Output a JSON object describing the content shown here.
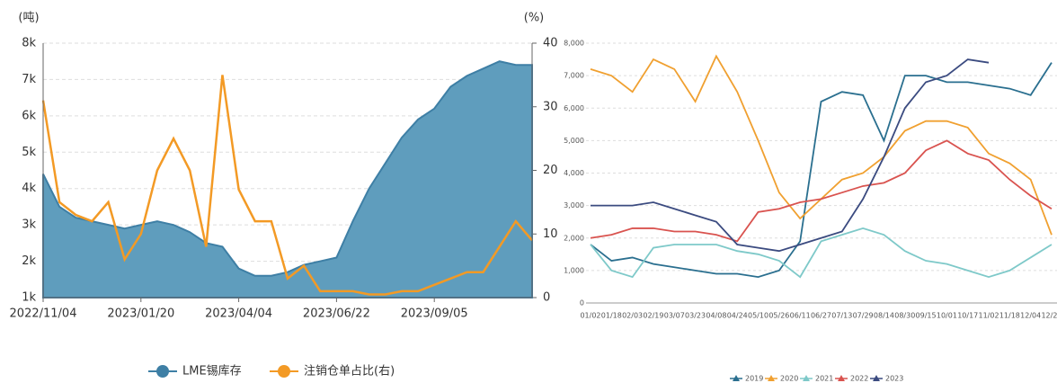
{
  "chart_data": [
    {
      "type": "combo",
      "y_label": "(吨)",
      "y2_label": "(%)",
      "categories": [
        "2022/11/04",
        null,
        null,
        null,
        null,
        null,
        "2023/01/20",
        null,
        null,
        null,
        null,
        null,
        "2023/04/04",
        null,
        null,
        null,
        null,
        null,
        "2023/06/22",
        null,
        null,
        null,
        null,
        null,
        "2023/09/05",
        null,
        null,
        null,
        null,
        null,
        null
      ],
      "ylim": [
        1000,
        8000
      ],
      "yticks": [
        {
          "value": 1000,
          "label": "1k"
        },
        {
          "value": 2000,
          "label": "2k"
        },
        {
          "value": 3000,
          "label": "3k"
        },
        {
          "value": 4000,
          "label": "4k"
        },
        {
          "value": 5000,
          "label": "5k"
        },
        {
          "value": 6000,
          "label": "6k"
        },
        {
          "value": 7000,
          "label": "7k"
        },
        {
          "value": 8000,
          "label": "8k"
        }
      ],
      "y2lim": [
        0,
        40
      ],
      "y2ticks": [
        0,
        10,
        20,
        30,
        40
      ],
      "grid": true,
      "series": [
        {
          "name": "LME锡库存",
          "type": "area",
          "color": "#5f9dbd",
          "values": [
            4400,
            3500,
            3200,
            3100,
            3000,
            2900,
            3000,
            3100,
            3000,
            2800,
            2500,
            2400,
            1800,
            1600,
            1600,
            1700,
            1900,
            2000,
            2100,
            3100,
            4000,
            4700,
            5400,
            5900,
            6200,
            6800,
            7100,
            7300,
            7500,
            7400,
            7400
          ]
        },
        {
          "name": "注销仓单占比(右)",
          "type": "line",
          "axis": "y2",
          "color": "#f39a25",
          "values": [
            31,
            15,
            13,
            12,
            15,
            6,
            10,
            20,
            25,
            20,
            8,
            35,
            17,
            12,
            12,
            3,
            5,
            1,
            1,
            1,
            0.5,
            0.5,
            1,
            1,
            2,
            3,
            4,
            4,
            8,
            12,
            9
          ]
        }
      ]
    },
    {
      "type": "line",
      "categories": [
        "01/02",
        "01/18",
        "02/03",
        "02/19",
        "03/07",
        "03/23",
        "04/08",
        "04/24",
        "05/10",
        "05/26",
        "06/11",
        "06/27",
        "07/13",
        "07/29",
        "08/14",
        "08/30",
        "09/15",
        "10/01",
        "10/17",
        "11/02",
        "11/18",
        "12/04",
        "12/20"
      ],
      "ylim": [
        0,
        8000
      ],
      "yticks": [
        0,
        {
          "value": 1000,
          "label": "1,000"
        },
        {
          "value": 2000,
          "label": "2,000"
        },
        {
          "value": 3000,
          "label": "3,000"
        },
        {
          "value": 4000,
          "label": "4,000"
        },
        {
          "value": 5000,
          "label": "5,000"
        },
        {
          "value": 6000,
          "label": "6,000"
        },
        {
          "value": 7000,
          "label": "7,000"
        },
        {
          "value": 8000,
          "label": "8,000"
        }
      ],
      "grid": true,
      "series": [
        {
          "name": "2019",
          "color": "#2a6f8f",
          "values": [
            1800,
            1300,
            1400,
            1200,
            1100,
            1000,
            900,
            900,
            800,
            1000,
            1900,
            6200,
            6500,
            6400,
            5000,
            7000,
            7000,
            6800,
            6800,
            6700,
            6600,
            6400,
            7400
          ]
        },
        {
          "name": "2020",
          "color": "#f0a030",
          "values": [
            7200,
            7000,
            6500,
            7500,
            7200,
            6200,
            7600,
            6500,
            5000,
            3400,
            2600,
            3200,
            3800,
            4000,
            4500,
            5300,
            5600,
            5600,
            5400,
            4600,
            4300,
            3800,
            2100
          ]
        },
        {
          "name": "2021",
          "color": "#7ec9c9",
          "values": [
            1800,
            1000,
            800,
            1700,
            1800,
            1800,
            1800,
            1600,
            1500,
            1300,
            800,
            1900,
            2100,
            2300,
            2100,
            1600,
            1300,
            1200,
            1000,
            800,
            1000,
            1400,
            1800
          ]
        },
        {
          "name": "2022",
          "color": "#d9534f",
          "values": [
            2000,
            2100,
            2300,
            2300,
            2200,
            2200,
            2100,
            1900,
            2800,
            2900,
            3100,
            3200,
            3400,
            3600,
            3700,
            4000,
            4700,
            5000,
            4600,
            4400,
            3800,
            3300,
            2900
          ]
        },
        {
          "name": "2023",
          "color": "#3b4b80",
          "values": [
            3000,
            3000,
            3000,
            3100,
            2900,
            2700,
            2500,
            1800,
            1700,
            1600,
            1800,
            2000,
            2200,
            3200,
            4500,
            6000,
            6800,
            7000,
            7500,
            7400,
            null,
            null,
            null
          ]
        }
      ]
    }
  ]
}
